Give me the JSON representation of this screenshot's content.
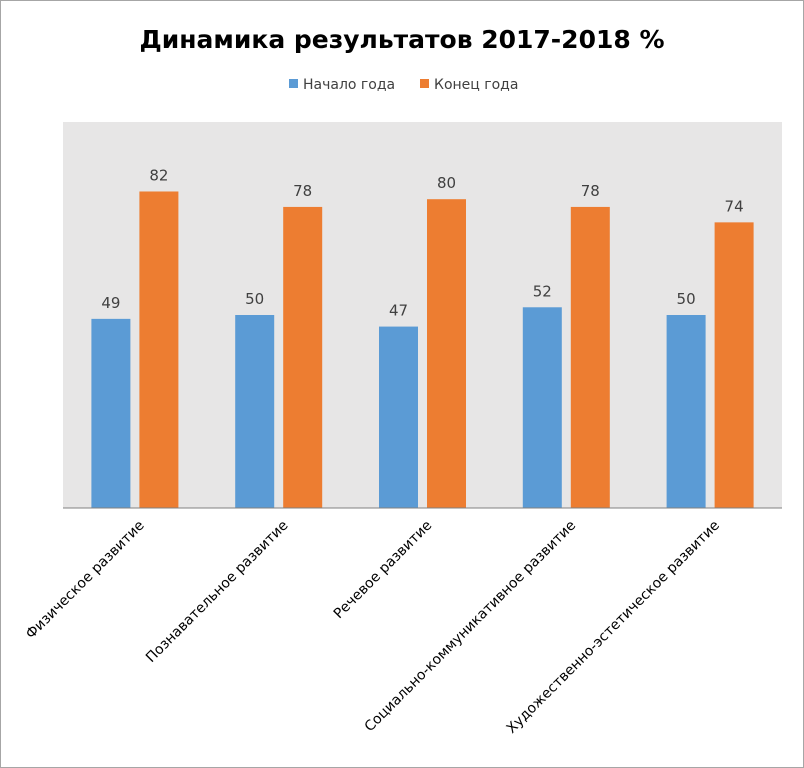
{
  "chart_data": {
    "type": "bar",
    "title": "Динамика результатов 2017-2018 %",
    "xlabel": "",
    "ylabel": "",
    "ylim": [
      0,
      100
    ],
    "grid": false,
    "legend_position": "top",
    "categories": [
      "Физическое развитие",
      "Познавательное развитие",
      "Речевое развитие",
      "Социально-коммуникативное развитие",
      "Художественно-эстетическое развитие"
    ],
    "series": [
      {
        "name": "Начало года",
        "color": "#5b9bd5",
        "values": [
          49,
          50,
          47,
          52,
          50
        ]
      },
      {
        "name": "Конец года",
        "color": "#ed7d31",
        "values": [
          82,
          78,
          80,
          78,
          74
        ]
      }
    ],
    "plot_background": "#e7e6e6"
  }
}
